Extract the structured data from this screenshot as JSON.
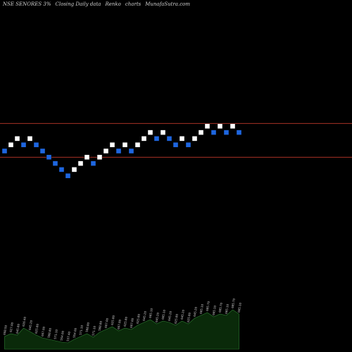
{
  "header": {
    "symbol": "NSE SENORES 3%",
    "tagline": "Closing Daily data",
    "chart_kind": "Renko",
    "charts_word": "charts",
    "site": "MunafaSutra.com"
  },
  "colors": {
    "background": "#000000",
    "up_brick": "#ffffff",
    "down_brick": "#1e66e0",
    "level_line": "#c0392b",
    "volume_fill": "#0a2a0a",
    "volume_stroke": "#2e7d32"
  },
  "chart_data": {
    "type": "renko",
    "brick_percent": 3,
    "bricks": [
      {
        "dir": "down",
        "level": 0
      },
      {
        "dir": "up",
        "level": 1
      },
      {
        "dir": "up",
        "level": 2
      },
      {
        "dir": "down",
        "level": 1
      },
      {
        "dir": "up",
        "level": 2
      },
      {
        "dir": "down",
        "level": 1
      },
      {
        "dir": "down",
        "level": 0
      },
      {
        "dir": "down",
        "level": -1
      },
      {
        "dir": "down",
        "level": -2
      },
      {
        "dir": "down",
        "level": -3
      },
      {
        "dir": "down",
        "level": -4
      },
      {
        "dir": "up",
        "level": -3
      },
      {
        "dir": "up",
        "level": -2
      },
      {
        "dir": "up",
        "level": -1
      },
      {
        "dir": "down",
        "level": -2
      },
      {
        "dir": "up",
        "level": -1
      },
      {
        "dir": "up",
        "level": 0
      },
      {
        "dir": "up",
        "level": 1
      },
      {
        "dir": "down",
        "level": 0
      },
      {
        "dir": "up",
        "level": 1
      },
      {
        "dir": "down",
        "level": 0
      },
      {
        "dir": "up",
        "level": 1
      },
      {
        "dir": "up",
        "level": 2
      },
      {
        "dir": "up",
        "level": 3
      },
      {
        "dir": "down",
        "level": 2
      },
      {
        "dir": "up",
        "level": 3
      },
      {
        "dir": "down",
        "level": 2
      },
      {
        "dir": "down",
        "level": 1
      },
      {
        "dir": "up",
        "level": 2
      },
      {
        "dir": "down",
        "level": 1
      },
      {
        "dir": "up",
        "level": 2
      },
      {
        "dir": "up",
        "level": 3
      },
      {
        "dir": "up",
        "level": 4
      },
      {
        "dir": "down",
        "level": 3
      },
      {
        "dir": "up",
        "level": 4
      },
      {
        "dir": "down",
        "level": 3
      },
      {
        "dir": "up",
        "level": 4
      },
      {
        "dir": "down",
        "level": 3
      }
    ],
    "reference_levels": [
      4,
      -1
    ],
    "volume": {
      "values": [
        18,
        22,
        20,
        30,
        25,
        20,
        16,
        14,
        12,
        10,
        9,
        14,
        18,
        22,
        17,
        24,
        28,
        32,
        26,
        30,
        28,
        34,
        38,
        42,
        36,
        40,
        38,
        34,
        40,
        36,
        44,
        48,
        52,
        46,
        50,
        48,
        56,
        50
      ],
      "labels": [
        "608.50",
        "627.00",
        "645.80",
        "626.40",
        "645.20",
        "625.80",
        "607.00",
        "588.80",
        "571.10",
        "554.00",
        "537.40",
        "554.00",
        "571.10",
        "588.80",
        "571.10",
        "588.80",
        "607.00",
        "625.80",
        "607.00",
        "625.80",
        "607.00",
        "625.80",
        "645.20",
        "665.10",
        "645.20",
        "665.10",
        "645.20",
        "625.80",
        "645.20",
        "625.80",
        "645.20",
        "665.10",
        "685.70",
        "665.10",
        "685.70",
        "665.10",
        "685.70",
        "665.10"
      ]
    }
  }
}
